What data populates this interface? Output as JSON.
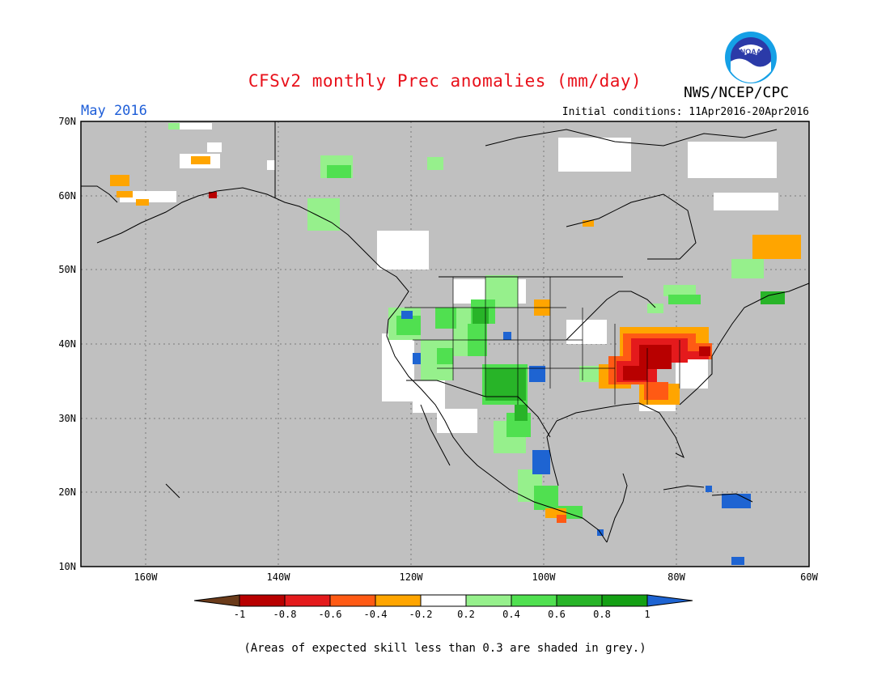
{
  "header": {
    "title": "CFSv2 monthly Prec anomalies (mm/day)",
    "agency": "NWS/NCEP/CPC",
    "logo_text": "NOAA",
    "month": "May 2016",
    "initial_conditions": "Initial conditions: 11Apr2016-20Apr2016"
  },
  "axes": {
    "lat_labels": [
      "70N",
      "60N",
      "50N",
      "40N",
      "30N",
      "20N",
      "10N"
    ],
    "lon_labels": [
      "160W",
      "140W",
      "120W",
      "100W",
      "80W",
      "60W"
    ]
  },
  "colorbar": {
    "labels": [
      "-1",
      "-0.8",
      "-0.6",
      "-0.4",
      "-0.2",
      "0.2",
      "0.4",
      "0.6",
      "0.8",
      "1"
    ],
    "colors": [
      "#6b3b1a",
      "#b80000",
      "#e41a1c",
      "#ff5a14",
      "#ffa500",
      "#ffffff",
      "#96f08c",
      "#50e050",
      "#28b428",
      "#14a014",
      "#1e64d2"
    ]
  },
  "footnote": "(Areas of expected skill less than 0.3 are shaded in grey.)",
  "colors": {
    "skill_grey": "#c0c0c0",
    "title_red": "#e8101a",
    "month_blue": "#1e5ed8"
  }
}
